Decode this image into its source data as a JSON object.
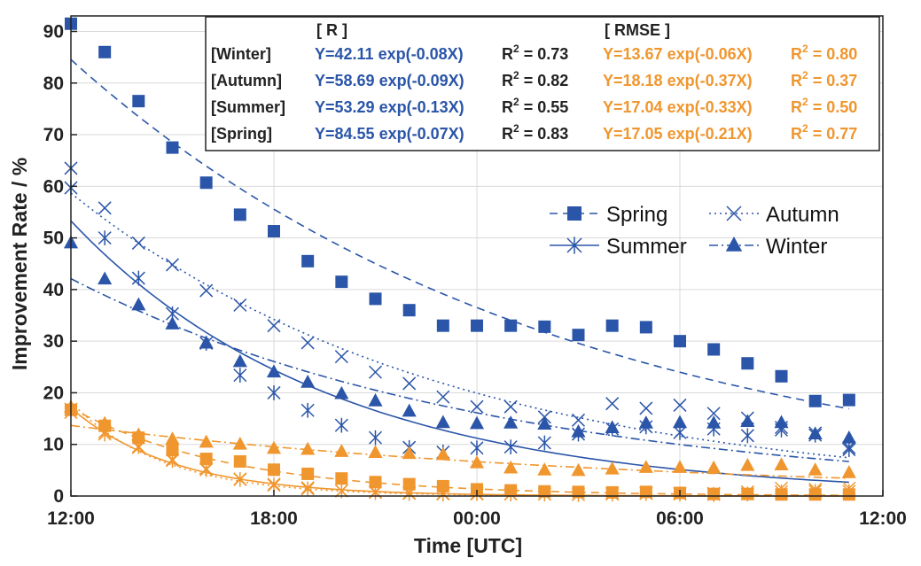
{
  "colors": {
    "r_series": "#2a55a8",
    "rmse_series": "#f0962e",
    "grid": "#d9d9d9",
    "text": "#222222"
  },
  "chart_data": {
    "type": "scatter",
    "xlabel": "Time [UTC]",
    "ylabel": "Improvement Rate / %",
    "x_hours_range": [
      0,
      24
    ],
    "ylim": [
      0,
      93
    ],
    "x_ticks": [
      {
        "hour": 0,
        "label": "12:00"
      },
      {
        "hour": 6,
        "label": "18:00"
      },
      {
        "hour": 12,
        "label": "00:00"
      },
      {
        "hour": 18,
        "label": "06:00"
      },
      {
        "hour": 24,
        "label": "12:00"
      }
    ],
    "y_ticks": [
      0,
      10,
      20,
      30,
      40,
      50,
      60,
      70,
      80,
      90
    ],
    "grid": true,
    "legend_position": "middle-right",
    "legend": [
      {
        "name": "Spring",
        "marker": "square",
        "dash": "9,6"
      },
      {
        "name": "Autumn",
        "marker": "x",
        "dash": "2,4"
      },
      {
        "name": "Summer",
        "marker": "star",
        "dash": ""
      },
      {
        "name": "Winter",
        "marker": "triangle",
        "dash": "10,4,2,4"
      }
    ],
    "annotation": {
      "header_r": "[ R ]",
      "header_rmse": "[ RMSE ]",
      "rows": [
        {
          "season": "[Winter]",
          "r_eq": "Y=42.11 exp(-0.08X)",
          "r_r2": "= 0.73",
          "rmse_eq": "Y=13.67 exp(-0.06X)",
          "rmse_r2": "= 0.80"
        },
        {
          "season": "[Autumn]",
          "r_eq": "Y=58.69 exp(-0.09X)",
          "r_r2": "= 0.82",
          "rmse_eq": "Y=18.18 exp(-0.37X)",
          "rmse_r2": "= 0.37"
        },
        {
          "season": "[Summer]",
          "r_eq": "Y=53.29 exp(-0.13X)",
          "r_r2": "= 0.55",
          "rmse_eq": "Y=17.04 exp(-0.33X)",
          "rmse_r2": "= 0.50"
        },
        {
          "season": "[Spring]",
          "r_eq": "Y=84.55 exp(-0.07X)",
          "r_r2": "= 0.83",
          "rmse_eq": "Y=17.05 exp(-0.21X)",
          "rmse_r2": "= 0.77"
        }
      ]
    },
    "x": [
      0,
      1,
      2,
      3,
      4,
      5,
      6,
      7,
      8,
      9,
      10,
      11,
      12,
      13,
      14,
      15,
      16,
      17,
      18,
      19,
      20,
      21,
      22,
      23
    ],
    "series": [
      {
        "name": "Spring",
        "metric": "R",
        "marker": "square",
        "a": 84.55,
        "b": 0.07,
        "values": [
          91.5,
          86,
          76.5,
          67.5,
          60.7,
          54.5,
          51.3,
          45.5,
          41.5,
          38.2,
          36,
          33,
          33,
          33,
          32.8,
          31.2,
          33,
          32.7,
          30,
          28.4,
          25.7,
          23.2,
          18.4,
          18.6
        ]
      },
      {
        "name": "Autumn",
        "metric": "R",
        "marker": "x",
        "a": 58.69,
        "b": 0.09,
        "values": [
          63.5,
          55.8,
          49,
          44.8,
          39.8,
          37,
          33,
          29.7,
          27,
          24,
          21.8,
          19.2,
          17.3,
          17.3,
          15.3,
          14.7,
          17.9,
          17,
          17.6,
          16,
          15.1,
          13.3,
          12.2,
          9.4
        ]
      },
      {
        "name": "Summer",
        "metric": "R",
        "marker": "star",
        "a": 53.29,
        "b": 0.13,
        "values": [
          59.7,
          50,
          42.2,
          35.3,
          29.6,
          23.4,
          20,
          16.6,
          13.7,
          11.3,
          9.4,
          8.5,
          9.3,
          9.5,
          10.3,
          12,
          13,
          13.4,
          12.3,
          13,
          11.7,
          12.8,
          11.8,
          9
        ]
      },
      {
        "name": "Winter",
        "metric": "R",
        "marker": "triangle",
        "a": 42.11,
        "b": 0.08,
        "values": [
          49,
          42,
          37,
          33.3,
          29.6,
          26,
          24,
          22,
          19.8,
          18.4,
          16.4,
          14.2,
          14,
          14.1,
          13.9,
          12.4,
          13.2,
          14.1,
          14.2,
          14.1,
          14.4,
          14.2,
          12,
          11.2
        ]
      },
      {
        "name": "Spring",
        "metric": "RMSE",
        "marker": "square",
        "a": 17.05,
        "b": 0.21,
        "values": [
          16.7,
          13.6,
          11.3,
          8.9,
          7.2,
          6.7,
          5.1,
          4.3,
          3.4,
          2.7,
          2.3,
          1.9,
          1.3,
          1.1,
          0.9,
          0.8,
          0.7,
          0.8,
          0.6,
          0.4,
          0.4,
          0.3,
          0.3,
          0.3
        ]
      },
      {
        "name": "Autumn",
        "metric": "RMSE",
        "marker": "x",
        "a": 18.18,
        "b": 0.37,
        "values": [
          16.2,
          12.4,
          9.4,
          7.1,
          5.3,
          3.3,
          2.3,
          1.6,
          1,
          0.8,
          0.6,
          0.5,
          0.4,
          0.4,
          0.4,
          0.3,
          0.5,
          0.6,
          0.5,
          0.5,
          0.8,
          1.5,
          1.3,
          1.5
        ]
      },
      {
        "name": "Summer",
        "metric": "RMSE",
        "marker": "star",
        "a": 17.04,
        "b": 0.33,
        "values": [
          16.8,
          12,
          9.6,
          6.9,
          5.1,
          3.2,
          2.1,
          1.4,
          1,
          0.7,
          0.5,
          0.4,
          0.5,
          0.4,
          0.4,
          0.3,
          0.4,
          0.5,
          0.4,
          0.3,
          0.4,
          0.8,
          0.9,
          0.9
        ]
      },
      {
        "name": "Winter",
        "metric": "RMSE",
        "marker": "triangle",
        "a": 13.67,
        "b": 0.06,
        "values": [
          17.2,
          14,
          11.8,
          11,
          10.4,
          10,
          9.2,
          9,
          8.6,
          8.4,
          8.2,
          8,
          6.4,
          5.4,
          5,
          4.9,
          5.2,
          5.5,
          5.5,
          5.4,
          5.9,
          6,
          5,
          4.5
        ]
      }
    ]
  }
}
